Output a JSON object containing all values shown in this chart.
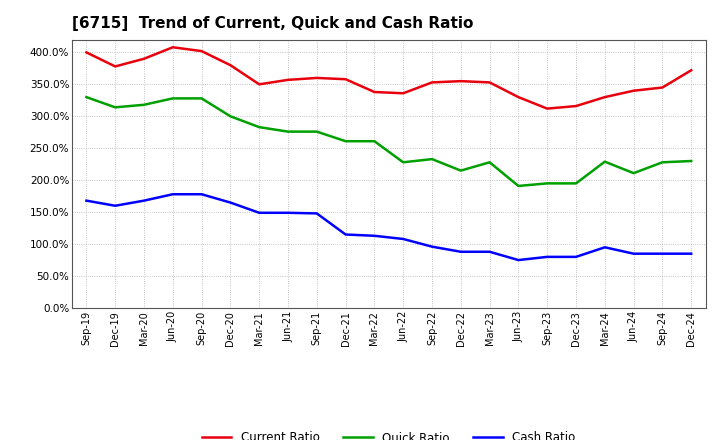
{
  "title": "[6715]  Trend of Current, Quick and Cash Ratio",
  "labels": [
    "Sep-19",
    "Dec-19",
    "Mar-20",
    "Jun-20",
    "Sep-20",
    "Dec-20",
    "Mar-21",
    "Jun-21",
    "Sep-21",
    "Dec-21",
    "Mar-22",
    "Jun-22",
    "Sep-22",
    "Dec-22",
    "Mar-23",
    "Jun-23",
    "Sep-23",
    "Dec-23",
    "Mar-24",
    "Jun-24",
    "Sep-24",
    "Dec-24"
  ],
  "current_ratio": [
    400.0,
    378.0,
    390.0,
    408.0,
    402.0,
    380.0,
    350.0,
    357.0,
    360.0,
    358.0,
    338.0,
    336.0,
    353.0,
    355.0,
    353.0,
    330.0,
    312.0,
    316.0,
    330.0,
    340.0,
    345.0,
    372.0
  ],
  "quick_ratio": [
    330.0,
    314.0,
    318.0,
    328.0,
    328.0,
    300.0,
    283.0,
    276.0,
    276.0,
    261.0,
    261.0,
    228.0,
    233.0,
    215.0,
    228.0,
    191.0,
    195.0,
    195.0,
    229.0,
    211.0,
    228.0,
    230.0
  ],
  "cash_ratio": [
    168.0,
    160.0,
    168.0,
    178.0,
    178.0,
    165.0,
    149.0,
    149.0,
    148.0,
    115.0,
    113.0,
    108.0,
    96.0,
    88.0,
    88.0,
    75.0,
    80.0,
    80.0,
    95.0,
    85.0,
    85.0,
    85.0
  ],
  "current_color": "#e8000d",
  "quick_color": "#00a000",
  "cash_color": "#0000ff",
  "background_color": "#ffffff",
  "plot_bg_color": "#ffffff",
  "ylim_pct": [
    0.0,
    420.0
  ],
  "yticks_pct": [
    0.0,
    50.0,
    100.0,
    150.0,
    200.0,
    250.0,
    300.0,
    350.0,
    400.0
  ],
  "grid_color": "#aaaaaa",
  "linewidth": 1.8
}
